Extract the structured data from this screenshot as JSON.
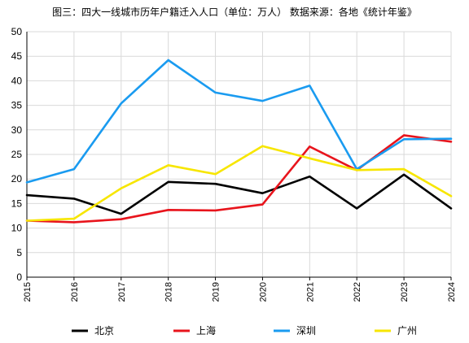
{
  "chart_data": {
    "type": "line",
    "title": "图三：四大一线城市历年户籍迁入人口（单位：万人） 数据来源：各地《统计年鉴》",
    "x": [
      "2015",
      "2016",
      "2017",
      "2018",
      "2019",
      "2020",
      "2021",
      "2022",
      "2023",
      "2024"
    ],
    "ylim": [
      0,
      50
    ],
    "yticks": [
      0,
      5,
      10,
      15,
      20,
      25,
      30,
      35,
      40,
      45,
      50
    ],
    "grid": true,
    "legend_position": "bottom",
    "series": [
      {
        "name": "北京",
        "color": "#000000",
        "values": [
          16.7,
          16.0,
          12.9,
          19.4,
          19.0,
          17.1,
          20.5,
          14.0,
          20.9,
          14.0
        ]
      },
      {
        "name": "上海",
        "color": "#e8141c",
        "values": [
          11.5,
          11.2,
          11.8,
          13.7,
          13.6,
          14.8,
          26.6,
          21.8,
          28.9,
          27.6
        ]
      },
      {
        "name": "深圳",
        "color": "#1a9bf0",
        "values": [
          19.3,
          22.0,
          35.4,
          44.2,
          37.6,
          35.9,
          39.0,
          22.0,
          28.1,
          28.2
        ]
      },
      {
        "name": "广州",
        "color": "#f7e600",
        "values": [
          11.5,
          11.9,
          18.1,
          22.8,
          21.0,
          26.7,
          24.2,
          21.8,
          22.0,
          16.5
        ]
      }
    ]
  }
}
